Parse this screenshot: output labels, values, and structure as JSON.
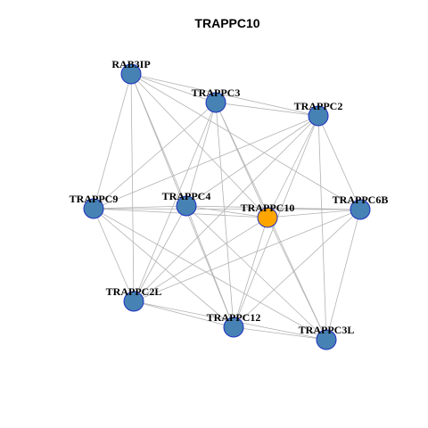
{
  "title": "TRAPPC10",
  "nodes": [
    {
      "label": "RAB3IP"
    },
    {
      "label": "TRAPPC3"
    },
    {
      "label": "TRAPPC2"
    },
    {
      "label": "TRAPPC9"
    },
    {
      "label": "TRAPPC4"
    },
    {
      "label": "TRAPPC10"
    },
    {
      "label": "TRAPPC6B"
    },
    {
      "label": "TRAPPC2L"
    },
    {
      "label": "TRAPPC12"
    },
    {
      "label": "TRAPPC3L"
    }
  ]
}
